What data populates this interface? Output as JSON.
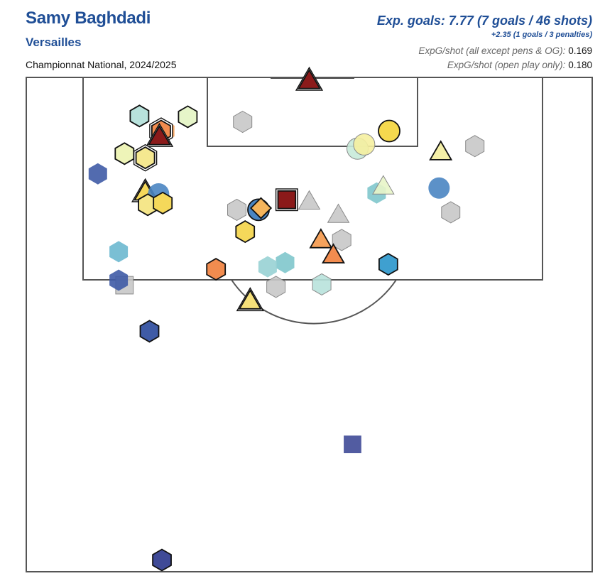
{
  "header": {
    "player": "Samy Baghdadi",
    "team": "Versailles",
    "competition": "Championnat National, 2024/2025",
    "xg_summary": "Exp. goals: 7.77 (7 goals / 46 shots)",
    "pens_summary": "+2.35 (1 goals / 3 penalties)",
    "xg_per_shot_label": "ExpG/shot (all except pens & OG):",
    "xg_per_shot_value": "0.169",
    "xg_per_shot_open_label": "ExpG/shot (open play only):",
    "xg_per_shot_open_value": "0.180"
  },
  "colors": {
    "title": "#1f4e96",
    "pitch_line": "#555555",
    "xg_scale": [
      "#313695",
      "#4575b4",
      "#74add1",
      "#abd9e9",
      "#e0f3f8",
      "#ffffbf",
      "#fee090",
      "#fdae61",
      "#f46d43",
      "#d73027",
      "#a50026"
    ],
    "blocked_or_offtarget": "#c8c8c8",
    "goal_fill": "#8b1a1a"
  },
  "legend_shapes": {
    "circle": "foot shot",
    "hexagon": "other foot shot",
    "triangle": "header",
    "square": "other",
    "diamond": "other"
  },
  "chart_data": {
    "type": "scatter",
    "title": "",
    "xlabel": "",
    "ylabel": "",
    "x_axis": "distance across pitch from left touchline (m)",
    "y_axis": "distance from goal line (m)",
    "xlim": [
      0,
      68
    ],
    "ylim": [
      0,
      59
    ],
    "shots": [
      {
        "x": 34.0,
        "y": 0.4,
        "shape": "triangle",
        "color": "#8b1a1a",
        "outline": "double",
        "goal": true
      },
      {
        "x": 19.4,
        "y": 4.7,
        "shape": "hexagon",
        "color": "#e6f5c9",
        "outline": "black"
      },
      {
        "x": 26.0,
        "y": 5.3,
        "shape": "hexagon",
        "color": "#c8c8c8",
        "outline": "gray"
      },
      {
        "x": 13.6,
        "y": 4.6,
        "shape": "hexagon",
        "color": "#b8e2dc",
        "outline": "black"
      },
      {
        "x": 16.7,
        "y": 6.4,
        "shape": "hexagon",
        "color": "#f7a35c",
        "outline": "none"
      },
      {
        "x": 16.2,
        "y": 6.4,
        "shape": "hexagon",
        "color": "#f28c4f",
        "outline": "double"
      },
      {
        "x": 16.0,
        "y": 7.1,
        "shape": "triangle",
        "color": "#8b1a1a",
        "outline": "double",
        "goal": true
      },
      {
        "x": 43.6,
        "y": 6.4,
        "shape": "circle",
        "color": "#f5d94e",
        "outline": "black"
      },
      {
        "x": 39.8,
        "y": 8.5,
        "shape": "circle",
        "color": "#c8ead9",
        "outline": "gray"
      },
      {
        "x": 40.6,
        "y": 8.0,
        "shape": "circle",
        "color": "#f5f0a0",
        "outline": "gray"
      },
      {
        "x": 49.8,
        "y": 8.9,
        "shape": "triangle",
        "color": "#f5f0a8",
        "outline": "black"
      },
      {
        "x": 53.9,
        "y": 8.2,
        "shape": "hexagon",
        "color": "#c8c8c8",
        "outline": "gray"
      },
      {
        "x": 11.8,
        "y": 9.1,
        "shape": "hexagon",
        "color": "#eef4b8",
        "outline": "black"
      },
      {
        "x": 14.3,
        "y": 9.6,
        "shape": "hexagon",
        "color": "#f5e890",
        "outline": "double"
      },
      {
        "x": 8.6,
        "y": 11.5,
        "shape": "hexagon",
        "color": "#3f5ba6",
        "outline": "none"
      },
      {
        "x": 14.3,
        "y": 13.7,
        "shape": "triangle",
        "color": "#f5d85a",
        "outline": "double"
      },
      {
        "x": 15.9,
        "y": 13.9,
        "shape": "circle",
        "color": "#4a85c2",
        "outline": "none"
      },
      {
        "x": 42.1,
        "y": 13.8,
        "shape": "hexagon",
        "color": "#7fc6cc",
        "outline": "none"
      },
      {
        "x": 42.9,
        "y": 13.0,
        "shape": "triangle",
        "color": "#e8f5c8",
        "outline": "gray"
      },
      {
        "x": 49.6,
        "y": 13.2,
        "shape": "circle",
        "color": "#4a85c2",
        "outline": "none"
      },
      {
        "x": 14.6,
        "y": 15.2,
        "shape": "hexagon",
        "color": "#f5e68a",
        "outline": "black"
      },
      {
        "x": 16.4,
        "y": 15.0,
        "shape": "hexagon",
        "color": "#f5d85a",
        "outline": "black"
      },
      {
        "x": 27.9,
        "y": 15.8,
        "shape": "circle",
        "color": "#4a85c2",
        "outline": "black"
      },
      {
        "x": 28.2,
        "y": 15.6,
        "shape": "diamond",
        "color": "#f5b55c",
        "outline": "black"
      },
      {
        "x": 31.3,
        "y": 14.6,
        "shape": "square",
        "color": "#8b1a1a",
        "outline": "double",
        "goal": true
      },
      {
        "x": 34.0,
        "y": 14.8,
        "shape": "triangle",
        "color": "#c8c8c8",
        "outline": "gray"
      },
      {
        "x": 25.3,
        "y": 15.8,
        "shape": "hexagon",
        "color": "#c8c8c8",
        "outline": "gray"
      },
      {
        "x": 37.5,
        "y": 16.4,
        "shape": "triangle",
        "color": "#c8c8c8",
        "outline": "gray"
      },
      {
        "x": 51.0,
        "y": 16.1,
        "shape": "hexagon",
        "color": "#c8c8c8",
        "outline": "gray"
      },
      {
        "x": 26.3,
        "y": 18.4,
        "shape": "hexagon",
        "color": "#f5d85a",
        "outline": "black"
      },
      {
        "x": 37.9,
        "y": 19.4,
        "shape": "hexagon",
        "color": "#c8c8c8",
        "outline": "gray"
      },
      {
        "x": 35.4,
        "y": 19.4,
        "shape": "triangle",
        "color": "#f5a25c",
        "outline": "black"
      },
      {
        "x": 11.1,
        "y": 20.8,
        "shape": "hexagon",
        "color": "#6bb8cf",
        "outline": "none"
      },
      {
        "x": 36.9,
        "y": 21.2,
        "shape": "triangle",
        "color": "#f28c4f",
        "outline": "black"
      },
      {
        "x": 31.1,
        "y": 22.1,
        "shape": "hexagon",
        "color": "#7fc6cc",
        "outline": "none"
      },
      {
        "x": 29.0,
        "y": 22.6,
        "shape": "hexagon",
        "color": "#98d2d4",
        "outline": "none"
      },
      {
        "x": 22.8,
        "y": 22.9,
        "shape": "hexagon",
        "color": "#f28c4f",
        "outline": "black"
      },
      {
        "x": 43.5,
        "y": 22.3,
        "shape": "hexagon",
        "color": "#3fa0d0",
        "outline": "black"
      },
      {
        "x": 11.8,
        "y": 24.8,
        "shape": "square",
        "color": "#c8c8c8",
        "outline": "gray"
      },
      {
        "x": 11.1,
        "y": 24.2,
        "shape": "hexagon",
        "color": "#3f5ba6",
        "outline": "none"
      },
      {
        "x": 30.0,
        "y": 25.0,
        "shape": "hexagon",
        "color": "#c8c8c8",
        "outline": "gray"
      },
      {
        "x": 35.5,
        "y": 24.7,
        "shape": "hexagon",
        "color": "#b8e2dc",
        "outline": "gray"
      },
      {
        "x": 26.9,
        "y": 26.7,
        "shape": "triangle",
        "color": "#f5e07a",
        "outline": "double"
      },
      {
        "x": 14.8,
        "y": 30.3,
        "shape": "hexagon",
        "color": "#3f5ba6",
        "outline": "black"
      },
      {
        "x": 39.2,
        "y": 43.8,
        "shape": "square",
        "color": "#3f4a97",
        "outline": "none"
      },
      {
        "x": 16.3,
        "y": 57.6,
        "shape": "hexagon",
        "color": "#3f4a97",
        "outline": "black"
      }
    ]
  }
}
